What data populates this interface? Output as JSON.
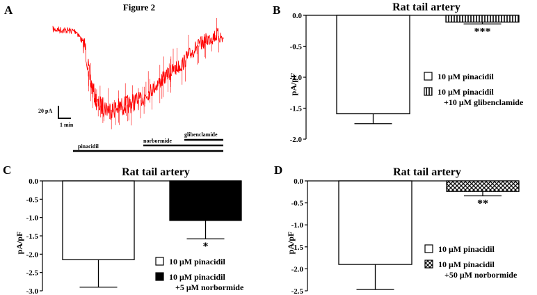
{
  "figure_title": "Figure 2",
  "trace": {
    "letter": "A",
    "scale_current": "20 pA",
    "scale_time": "1 min",
    "drugs": [
      {
        "label": "pinacidil"
      },
      {
        "label": "norbormide"
      },
      {
        "label": "glibenclamide"
      }
    ]
  },
  "colors": {
    "trace": "#ff0000",
    "bar_fill": "#ffffff",
    "bar_solid": "#000000",
    "axis": "#000000"
  },
  "chart_data": [
    {
      "panel": "B",
      "type": "bar",
      "title": "Rat tail artery",
      "ylabel": "pA/pF",
      "ylim": [
        -2.0,
        0.0
      ],
      "yticks": [
        "0.0",
        "-0.5",
        "-1.0",
        "-1.5",
        "-2.0"
      ],
      "ytick_values": [
        0.0,
        -0.5,
        -1.0,
        -1.5,
        -2.0
      ],
      "series": [
        {
          "name": "10 μM pinacidil",
          "sub": "",
          "value": -1.59,
          "error": 0.16,
          "pattern": "open",
          "stars": ""
        },
        {
          "name": "10 μM pinacidil",
          "sub": "+10 μM glibenclamide",
          "value": -0.11,
          "error": 0.03,
          "pattern": "vertical-lines",
          "stars": "***"
        }
      ]
    },
    {
      "panel": "C",
      "type": "bar",
      "title": "Rat tail artery",
      "ylabel": "pA/pF",
      "ylim": [
        -3.0,
        0.0
      ],
      "yticks": [
        "0.0",
        "-0.5",
        "-1.0",
        "-1.5",
        "-2.0",
        "-2.5",
        "-3.0"
      ],
      "ytick_values": [
        0.0,
        -0.5,
        -1.0,
        -1.5,
        -2.0,
        -2.5,
        -3.0
      ],
      "series": [
        {
          "name": "10 μM pinacidil",
          "sub": "",
          "value": -2.15,
          "error": 0.75,
          "pattern": "open",
          "stars": ""
        },
        {
          "name": "10 μM pinacidil",
          "sub": "+5 μM norbormide",
          "value": -1.08,
          "error": 0.5,
          "pattern": "solid",
          "stars": "*"
        }
      ]
    },
    {
      "panel": "D",
      "type": "bar",
      "title": "Rat tail artery",
      "ylabel": "pA/pF",
      "ylim": [
        -2.5,
        0.0
      ],
      "yticks": [
        "0.0",
        "-0.5",
        "-1.0",
        "-1.5",
        "-2.0",
        "-2.5"
      ],
      "ytick_values": [
        0.0,
        -0.5,
        -1.0,
        -1.5,
        -2.0,
        -2.5
      ],
      "series": [
        {
          "name": "10 μM pinacidil",
          "sub": "",
          "value": -1.9,
          "error": 0.57,
          "pattern": "open",
          "stars": ""
        },
        {
          "name": "10 μM pinacidil",
          "sub": "+50 μM norbormide",
          "value": -0.24,
          "error": 0.1,
          "pattern": "crosshatch",
          "stars": "**"
        }
      ]
    }
  ]
}
